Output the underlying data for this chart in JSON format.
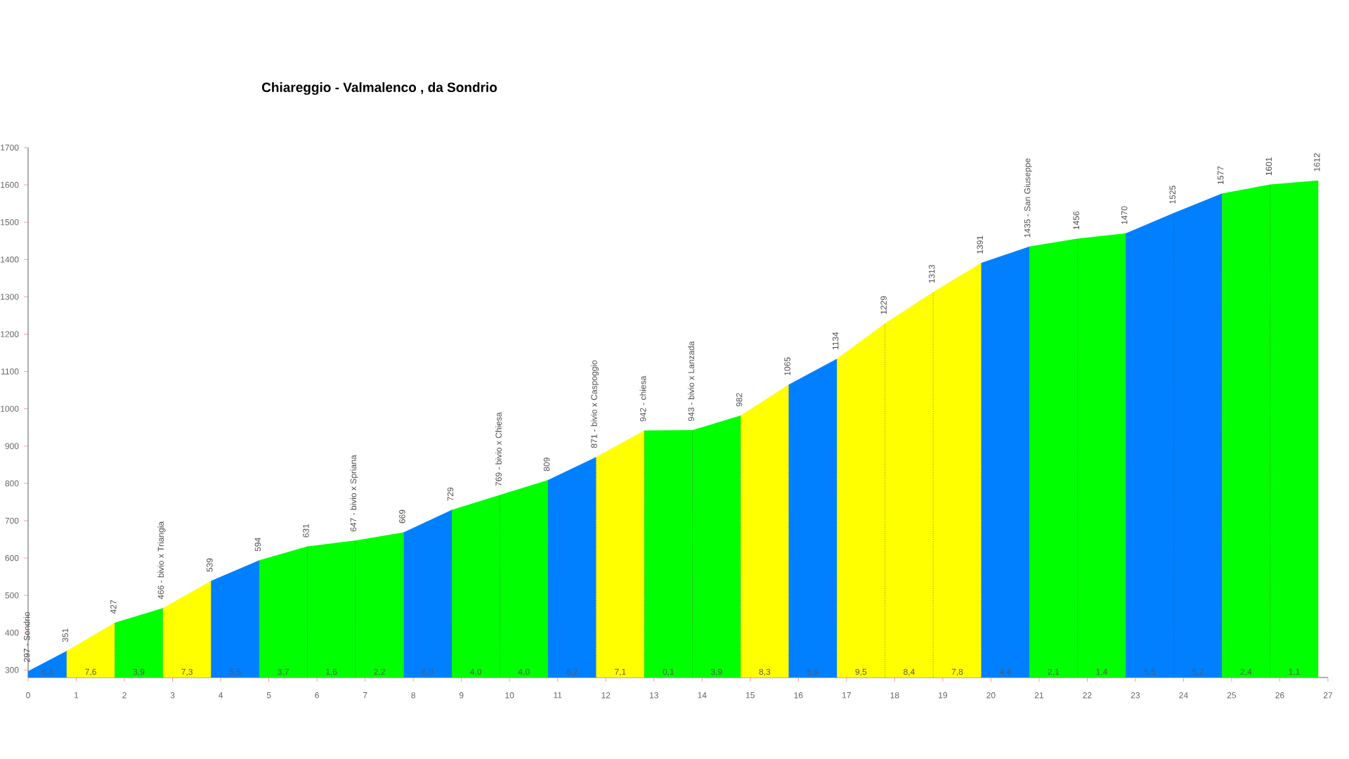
{
  "chart_data": {
    "type": "area",
    "title": "Chiareggio - Valmalenco , da Sondrio",
    "series": [
      {
        "color": "#0080ff",
        "x": [
          0,
          0.8
        ],
        "values": [
          297,
          351
        ],
        "value_labels": [
          "297 - Sondrio",
          "351"
        ]
      },
      {
        "color": "#ffff00",
        "x": [
          0.8,
          1.8
        ],
        "values": [
          351,
          427
        ],
        "value_labels": [
          null,
          "427"
        ]
      },
      {
        "color": "#00ff00",
        "x": [
          1.8,
          2.8
        ],
        "values": [
          427,
          466
        ],
        "value_labels": [
          null,
          "466 - bivio x Triangia"
        ]
      },
      {
        "color": "#ffff00",
        "x": [
          2.8,
          3.8
        ],
        "values": [
          466,
          539
        ],
        "value_labels": [
          null,
          "539"
        ]
      },
      {
        "color": "#0080ff",
        "x": [
          3.8,
          4.8
        ],
        "values": [
          539,
          594
        ],
        "value_labels": [
          null,
          "594"
        ]
      },
      {
        "color": "#00ff00",
        "x": [
          4.8,
          5.8,
          6.8,
          7.8
        ],
        "values": [
          594,
          631,
          647,
          669
        ],
        "value_labels": [
          null,
          "631",
          "647 - bivio x Spriana",
          "669"
        ]
      },
      {
        "color": "#0080ff",
        "x": [
          7.8,
          8.8
        ],
        "values": [
          669,
          729
        ],
        "value_labels": [
          null,
          "729"
        ]
      },
      {
        "color": "#00ff00",
        "x": [
          8.8,
          9.8,
          10.8
        ],
        "values": [
          729,
          769,
          809
        ],
        "value_labels": [
          null,
          "769 - bivio x Chiesa",
          "809"
        ]
      },
      {
        "color": "#0080ff",
        "x": [
          10.8,
          11.8
        ],
        "values": [
          809,
          871
        ],
        "value_labels": [
          null,
          "871 - bivio x Caspoggio"
        ]
      },
      {
        "color": "#ffff00",
        "x": [
          11.8,
          12.8
        ],
        "values": [
          871,
          942
        ],
        "value_labels": [
          null,
          "942 - chiesa"
        ]
      },
      {
        "color": "#00ff00",
        "x": [
          12.8,
          13.8,
          14.8
        ],
        "values": [
          942,
          943,
          982
        ],
        "value_labels": [
          null,
          "943 - bivio x Lanzada",
          "982"
        ]
      },
      {
        "color": "#ffff00",
        "x": [
          14.8,
          15.8
        ],
        "values": [
          982,
          1065
        ],
        "value_labels": [
          null,
          "1065"
        ]
      },
      {
        "color": "#0080ff",
        "x": [
          15.8,
          16.8
        ],
        "values": [
          1065,
          1134
        ],
        "value_labels": [
          null,
          "1134"
        ]
      },
      {
        "color": "#ffff00",
        "x": [
          16.8,
          17.8,
          18.8,
          19.8
        ],
        "values": [
          1134,
          1229,
          1313,
          1391
        ],
        "value_labels": [
          null,
          "1229",
          "1313",
          "1391"
        ]
      },
      {
        "color": "#0080ff",
        "x": [
          19.8,
          20.8
        ],
        "values": [
          1391,
          1435
        ],
        "value_labels": [
          null,
          "1435 - San Giuseppe"
        ]
      },
      {
        "color": "#00ff00",
        "x": [
          20.8,
          21.8,
          22.8
        ],
        "values": [
          1435,
          1456,
          1470
        ],
        "value_labels": [
          null,
          "1456",
          "1470"
        ]
      },
      {
        "color": "#0080ff",
        "x": [
          22.8,
          23.8,
          24.8
        ],
        "values": [
          1470,
          1525,
          1577
        ],
        "value_labels": [
          null,
          "1525",
          "1577"
        ]
      },
      {
        "color": "#00ff00",
        "x": [
          24.8,
          25.8,
          26.8
        ],
        "values": [
          1577,
          1601,
          1612
        ],
        "value_labels": [
          null,
          "1601",
          "1612"
        ]
      }
    ],
    "annotations": [
      "6,8",
      "7,6",
      "3,9",
      "7,3",
      "5,5",
      "3,7",
      "1,6",
      "2,2",
      "6,0",
      "4,0",
      "4,0",
      "6,2",
      "7,1",
      "0,1",
      "3,9",
      "8,3",
      "6,9",
      "9,5",
      "8,4",
      "7,8",
      "4,4",
      "2,1",
      "1,4",
      "5,5",
      "5,2",
      "2,4",
      "1,1"
    ],
    "xlim": [
      0,
      27
    ],
    "ylim": [
      280,
      1700
    ],
    "xticks": [
      0,
      1,
      2,
      3,
      4,
      5,
      6,
      7,
      8,
      9,
      10,
      11,
      12,
      13,
      14,
      15,
      16,
      17,
      18,
      19,
      20,
      21,
      22,
      23,
      24,
      25,
      26,
      27
    ],
    "yticks": [
      300,
      400,
      500,
      600,
      700,
      800,
      900,
      1000,
      1100,
      1200,
      1300,
      1400,
      1500,
      1600,
      1700
    ]
  }
}
